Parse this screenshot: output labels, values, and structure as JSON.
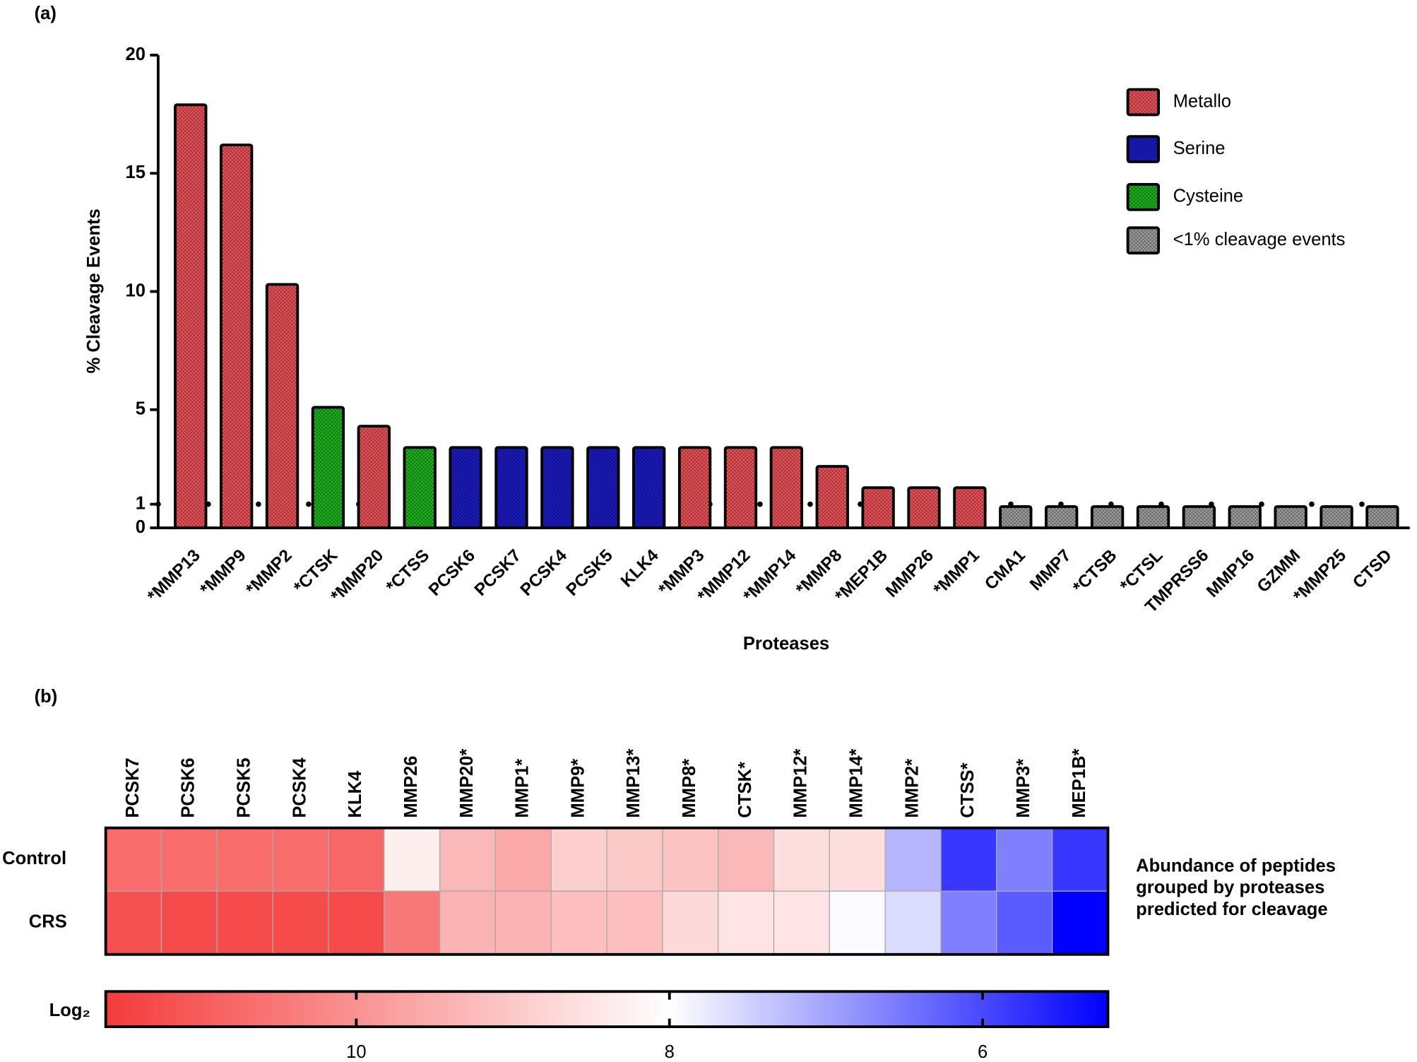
{
  "chart_data": [
    {
      "type": "bar",
      "panel_label": "(a)",
      "x_label": "Proteases",
      "y_label": "% Cleavage Events",
      "categories": [
        "*MMP13",
        "*MMP9",
        "*MMP2",
        "*CTSK",
        "*MMP20",
        "*CTSS",
        "PCSK6",
        "PCSK7",
        "PCSK4",
        "PCSK5",
        "KLK4",
        "*MMP3",
        "*MMP12",
        "*MMP14",
        "*MMP8",
        "*MEP1B",
        "MMP26",
        "*MMP1",
        "CMA1",
        "MMP7",
        "*CTSB",
        "*CTSL",
        "TMPRSS6",
        "MMP16",
        "GZMM",
        "*MMP25",
        "CTSD"
      ],
      "series": [
        {
          "name": "Metallo",
          "color": "#f0545a",
          "values": [
            17.9,
            16.2,
            10.3,
            null,
            4.3,
            null,
            null,
            null,
            null,
            null,
            null,
            3.4,
            3.4,
            3.4,
            2.6,
            1.7,
            1.7,
            1.7,
            null,
            null,
            null,
            null,
            null,
            null,
            null,
            null,
            null
          ]
        },
        {
          "name": "Serine",
          "color": "#1c1cc8",
          "values": [
            null,
            null,
            null,
            null,
            null,
            null,
            3.4,
            3.4,
            3.4,
            3.4,
            3.4,
            null,
            null,
            null,
            null,
            null,
            null,
            null,
            null,
            null,
            null,
            null,
            null,
            null,
            null,
            null,
            null
          ]
        },
        {
          "name": "Cysteine",
          "color": "#1fb51f",
          "values": [
            null,
            null,
            null,
            5.1,
            null,
            3.4,
            null,
            null,
            null,
            null,
            null,
            null,
            null,
            null,
            null,
            null,
            null,
            null,
            null,
            null,
            null,
            null,
            null,
            null,
            null,
            null,
            null
          ]
        },
        {
          "name": "<1% cleavage events",
          "color": "#a0a0a0",
          "values": [
            null,
            null,
            null,
            null,
            null,
            null,
            null,
            null,
            null,
            null,
            null,
            null,
            null,
            null,
            null,
            null,
            null,
            null,
            0.9,
            0.9,
            0.9,
            0.9,
            0.9,
            0.9,
            0.9,
            0.9,
            0.9
          ]
        }
      ],
      "ylim": [
        0,
        20
      ],
      "yticks": [
        0,
        1,
        5,
        10,
        15,
        20
      ],
      "hline": 1,
      "legend": "upper right"
    },
    {
      "type": "heatmap",
      "panel_label": "(b)",
      "columns": [
        "PCSK7",
        "PCSK6",
        "PCSK5",
        "PCSK4",
        "KLK4",
        "MMP26",
        "MMP20*",
        "MMP1*",
        "MMP9*",
        "MMP13*",
        "MMP8*",
        "CTSK*",
        "MMP12*",
        "MMP14*",
        "MMP2*",
        "CTSS*",
        "MMP3*",
        "MEP1B*"
      ],
      "rows": [
        "Control",
        "CRS"
      ],
      "values": [
        [
          10.7,
          10.7,
          10.7,
          10.7,
          10.8,
          8.3,
          9.3,
          9.6,
          8.9,
          9.0,
          9.1,
          9.3,
          8.6,
          8.6,
          7.2,
          5.8,
          6.6,
          5.8
        ],
        [
          11.2,
          11.3,
          11.3,
          11.3,
          11.3,
          10.5,
          9.4,
          9.4,
          9.2,
          9.2,
          8.7,
          8.5,
          8.5,
          7.95,
          7.6,
          6.6,
          6.2,
          5.2
        ]
      ],
      "annotation": [
        "Abundance of peptides",
        "grouped by proteases",
        "predicted for cleavage"
      ],
      "colorbar_label": "Log₂",
      "clim": [
        11.6,
        5.2
      ],
      "cmid": 8,
      "cticks": [
        10,
        8,
        6
      ],
      "colormap": [
        "#f53b3b",
        "#ffffff",
        "#0000ff"
      ]
    }
  ]
}
